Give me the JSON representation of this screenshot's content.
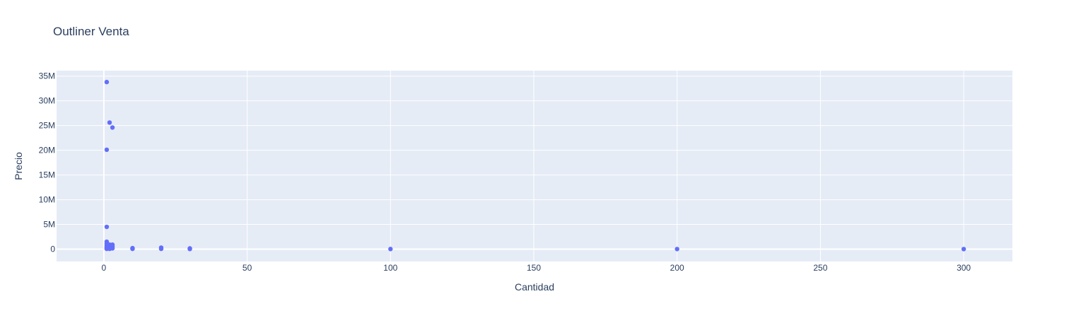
{
  "chart_data": {
    "type": "scatter",
    "title": "Outliner Venta",
    "xlabel": "Cantidad",
    "ylabel": "Precio",
    "xlim": [
      -16.5,
      317
    ],
    "ylim": [
      -2500000,
      36100000
    ],
    "x_ticks": [
      0,
      50,
      100,
      150,
      200,
      250,
      300
    ],
    "x_tick_labels": [
      "0",
      "50",
      "100",
      "150",
      "200",
      "250",
      "300"
    ],
    "y_ticks": [
      0,
      5000000,
      10000000,
      15000000,
      20000000,
      25000000,
      30000000,
      35000000
    ],
    "y_tick_labels": [
      "0",
      "5M",
      "10M",
      "15M",
      "20M",
      "25M",
      "30M",
      "35M"
    ],
    "grid": true,
    "legend": "none",
    "colors": {
      "marker": "#636efa",
      "plot_bg": "#e5ecf6",
      "grid": "#ffffff",
      "text": "#2a3f5f"
    },
    "series": [
      {
        "x": [
          1,
          2,
          3,
          1,
          1,
          1,
          1,
          1,
          1,
          1,
          1,
          2,
          2,
          2,
          2,
          3,
          3,
          3,
          1,
          2,
          10,
          10,
          20,
          20,
          30,
          30,
          100,
          200,
          300
        ],
        "y": [
          33800000,
          25600000,
          24600000,
          20100000,
          4500000,
          1500000,
          1100000,
          800000,
          500000,
          200000,
          50000,
          900000,
          600000,
          300000,
          100000,
          900000,
          500000,
          150000,
          300000,
          50000,
          200000,
          50000,
          300000,
          50000,
          150000,
          30000,
          20000,
          15000,
          10000
        ]
      }
    ]
  }
}
